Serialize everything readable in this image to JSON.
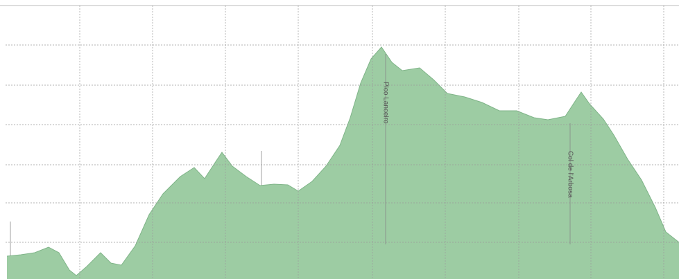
{
  "chart_data": {
    "type": "area",
    "x": [
      10,
      30,
      50,
      70,
      85,
      100,
      110,
      125,
      145,
      160,
      175,
      195,
      215,
      235,
      260,
      280,
      295,
      310,
      320,
      335,
      355,
      375,
      395,
      415,
      430,
      450,
      470,
      490,
      505,
      520,
      535,
      550,
      565,
      580,
      605,
      625,
      645,
      670,
      695,
      720,
      745,
      770,
      790,
      815,
      830,
      838,
      850,
      870,
      885,
      905,
      925,
      945,
      960,
      979
    ],
    "values": [
      33,
      35,
      38,
      46,
      38,
      13,
      5,
      18,
      38,
      23,
      20,
      48,
      93,
      123,
      148,
      161,
      145,
      168,
      183,
      163,
      148,
      135,
      137,
      136,
      127,
      141,
      163,
      193,
      233,
      283,
      318,
      335,
      313,
      301,
      305,
      288,
      268,
      263,
      255,
      243,
      243,
      233,
      230,
      235,
      258,
      270,
      253,
      231,
      208,
      173,
      143,
      103,
      68,
      53
    ],
    "color": "#9dcca3",
    "edge": "#7fb488",
    "xlim": [
      8,
      979
    ],
    "ylim": [
      0,
      395
    ],
    "xticks": [
      115,
      220,
      325,
      430,
      537,
      642,
      748,
      852,
      957
    ],
    "yticks": [
      53,
      110,
      165,
      223,
      280,
      338
    ],
    "grid": true,
    "annotations": [
      {
        "text": "Pico Lanceiro",
        "x": 556
      },
      {
        "text": "Col de l'Arbosa",
        "x": 822
      }
    ]
  }
}
